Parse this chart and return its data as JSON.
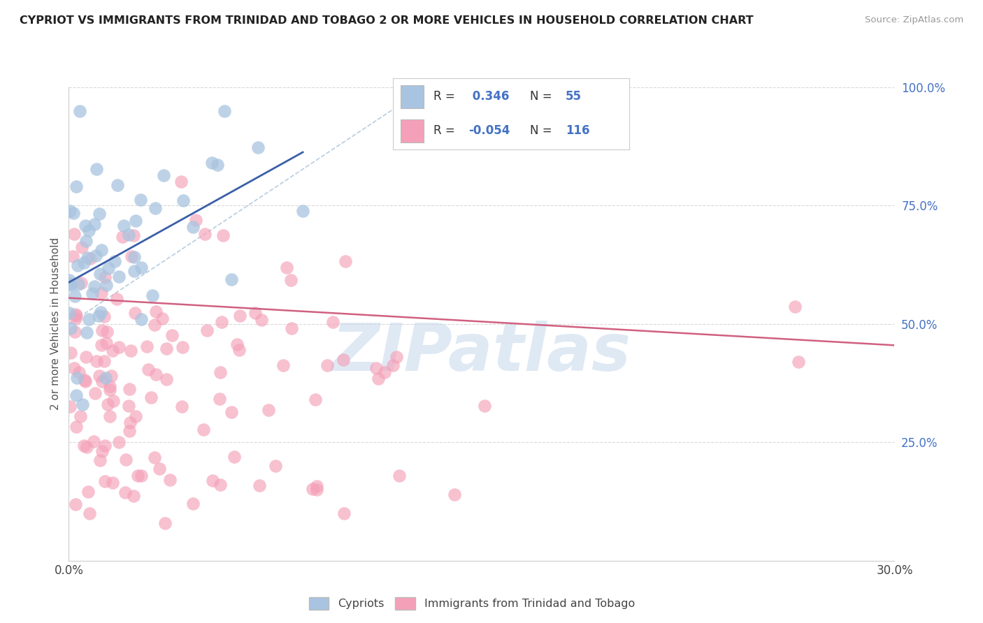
{
  "title": "CYPRIOT VS IMMIGRANTS FROM TRINIDAD AND TOBAGO 2 OR MORE VEHICLES IN HOUSEHOLD CORRELATION CHART",
  "source": "Source: ZipAtlas.com",
  "ylabel": "2 or more Vehicles in Household",
  "xmin": 0.0,
  "xmax": 0.3,
  "ymin": 0.0,
  "ymax": 1.0,
  "blue_R": 0.346,
  "blue_N": 55,
  "pink_R": -0.054,
  "pink_N": 116,
  "blue_color": "#a8c4e0",
  "pink_color": "#f4a0b8",
  "blue_line_color": "#3a5fa8",
  "pink_line_color": "#d06080",
  "dash_line_color": "#b8cce0",
  "legend_label_blue": "Cypriots",
  "legend_label_pink": "Immigrants from Trinidad and Tobago",
  "watermark": "ZIPatlas",
  "background_color": "#ffffff",
  "grid_color": "#d8d8d8",
  "blue_seed": 12,
  "pink_seed": 77
}
